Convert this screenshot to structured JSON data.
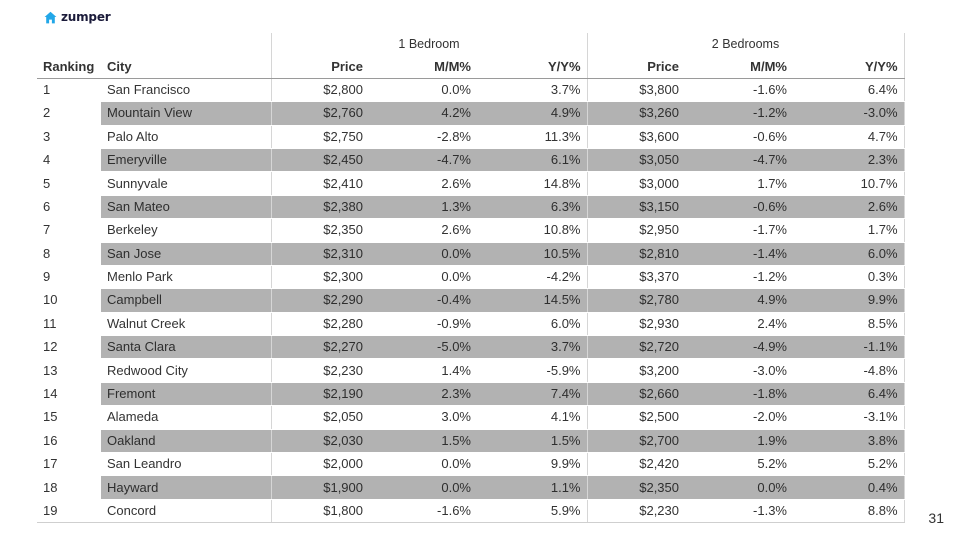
{
  "brand": {
    "logo_text": "zumper",
    "logo_icon": "house-icon",
    "logo_color": "#22a7e8"
  },
  "page_number": "31",
  "table": {
    "groups": [
      "1 Bedroom",
      "2 Bedrooms"
    ],
    "columns": [
      "Ranking",
      "City",
      "Price",
      "M/M%",
      "Y/Y%",
      "Price",
      "M/M%",
      "Y/Y%"
    ],
    "shade_color": "#b2b2b2",
    "rows": [
      [
        "1",
        "San Francisco",
        "$2,800",
        "0.0%",
        "3.7%",
        "$3,800",
        "-1.6%",
        "6.4%"
      ],
      [
        "2",
        "Mountain View",
        "$2,760",
        "4.2%",
        "4.9%",
        "$3,260",
        "-1.2%",
        "-3.0%"
      ],
      [
        "3",
        "Palo Alto",
        "$2,750",
        "-2.8%",
        "11.3%",
        "$3,600",
        "-0.6%",
        "4.7%"
      ],
      [
        "4",
        "Emeryville",
        "$2,450",
        "-4.7%",
        "6.1%",
        "$3,050",
        "-4.7%",
        "2.3%"
      ],
      [
        "5",
        "Sunnyvale",
        "$2,410",
        "2.6%",
        "14.8%",
        "$3,000",
        "1.7%",
        "10.7%"
      ],
      [
        "6",
        "San Mateo",
        "$2,380",
        "1.3%",
        "6.3%",
        "$3,150",
        "-0.6%",
        "2.6%"
      ],
      [
        "7",
        "Berkeley",
        "$2,350",
        "2.6%",
        "10.8%",
        "$2,950",
        "-1.7%",
        "1.7%"
      ],
      [
        "8",
        "San Jose",
        "$2,310",
        "0.0%",
        "10.5%",
        "$2,810",
        "-1.4%",
        "6.0%"
      ],
      [
        "9",
        "Menlo Park",
        "$2,300",
        "0.0%",
        "-4.2%",
        "$3,370",
        "-1.2%",
        "0.3%"
      ],
      [
        "10",
        "Campbell",
        "$2,290",
        "-0.4%",
        "14.5%",
        "$2,780",
        "4.9%",
        "9.9%"
      ],
      [
        "11",
        "Walnut Creek",
        "$2,280",
        "-0.9%",
        "6.0%",
        "$2,930",
        "2.4%",
        "8.5%"
      ],
      [
        "12",
        "Santa Clara",
        "$2,270",
        "-5.0%",
        "3.7%",
        "$2,720",
        "-4.9%",
        "-1.1%"
      ],
      [
        "13",
        "Redwood City",
        "$2,230",
        "1.4%",
        "-5.9%",
        "$3,200",
        "-3.0%",
        "-4.8%"
      ],
      [
        "14",
        "Fremont",
        "$2,190",
        "2.3%",
        "7.4%",
        "$2,660",
        "-1.8%",
        "6.4%"
      ],
      [
        "15",
        "Alameda",
        "$2,050",
        "3.0%",
        "4.1%",
        "$2,500",
        "-2.0%",
        "-3.1%"
      ],
      [
        "16",
        "Oakland",
        "$2,030",
        "1.5%",
        "1.5%",
        "$2,700",
        "1.9%",
        "3.8%"
      ],
      [
        "17",
        "San Leandro",
        "$2,000",
        "0.0%",
        "9.9%",
        "$2,420",
        "5.2%",
        "5.2%"
      ],
      [
        "18",
        "Hayward",
        "$1,900",
        "0.0%",
        "1.1%",
        "$2,350",
        "0.0%",
        "0.4%"
      ],
      [
        "19",
        "Concord",
        "$1,800",
        "-1.6%",
        "5.9%",
        "$2,230",
        "-1.3%",
        "8.8%"
      ]
    ]
  }
}
